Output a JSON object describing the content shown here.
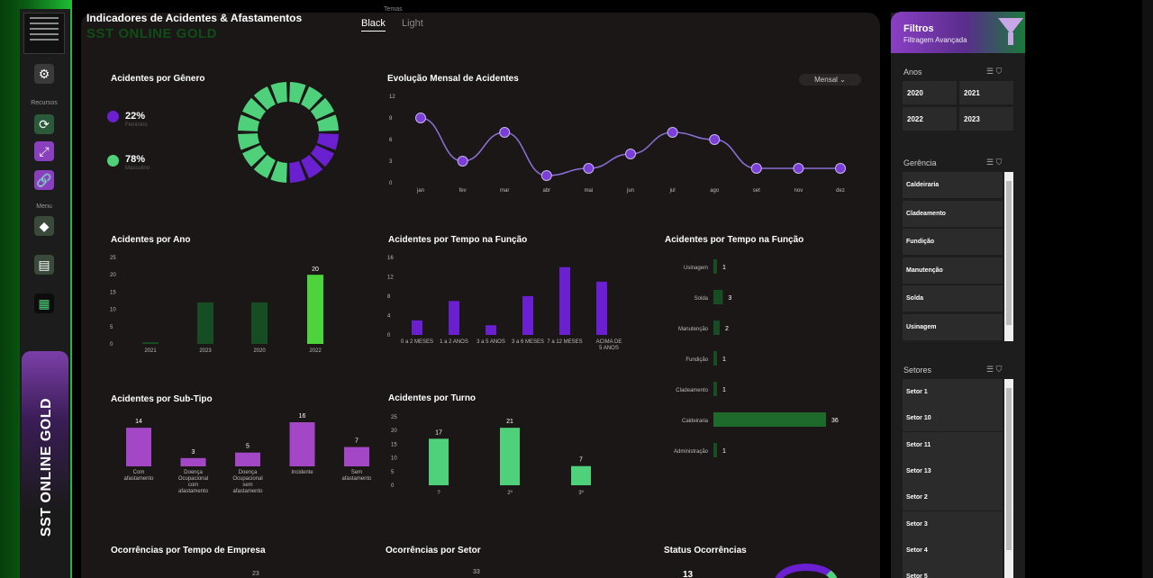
{
  "header": {
    "title": "Indicadores de Acidentes & Afastamentos",
    "subtitle": "SST ONLINE GOLD",
    "theme_label": "Temas",
    "themes": [
      "Black",
      "Light"
    ]
  },
  "rail": {
    "recurso_label": "Recursos",
    "menu_label": "Menu",
    "brand": "SST ONLINE GOLD"
  },
  "genero": {
    "title": "Acidentes por Gênero",
    "items": [
      {
        "pct": "22%",
        "label": "Feminino",
        "color": "#6a1fd1"
      },
      {
        "pct": "78%",
        "label": "Masculino",
        "color": "#4fd07a"
      }
    ]
  },
  "mensal": {
    "title": "Evolução Mensal de Acidentes",
    "dropdown": "Mensal",
    "yticks": [
      "12",
      "9",
      "6",
      "3",
      "0"
    ]
  },
  "ano": {
    "title": "Acidentes por Ano",
    "yticks": [
      "25",
      "20",
      "15",
      "10",
      "5",
      "0"
    ]
  },
  "tempo_funcao": {
    "title": "Acidentes por Tempo na Função",
    "yticks": [
      "16",
      "12",
      "8",
      "4",
      "0"
    ]
  },
  "tempo_funcao2": {
    "title": "Acidentes por Tempo na Função"
  },
  "subtipo": {
    "title": "Acidentes por Sub-Tipo"
  },
  "turno": {
    "title": "Acidentes por Turno",
    "yticks": [
      "25",
      "20",
      "15",
      "10",
      "5",
      "0"
    ]
  },
  "bottom": {
    "t1": "Ocorrências por Tempo de Empresa",
    "t2": "Ocorrências por Setor",
    "t3": "Status Ocorrências",
    "v1": "23",
    "v2": "33",
    "v3": "13"
  },
  "chart_data": [
    {
      "type": "pie",
      "title": "Acidentes por Gênero",
      "categories": [
        "Feminino",
        "Masculino"
      ],
      "values": [
        22,
        78
      ]
    },
    {
      "type": "line",
      "title": "Evolução Mensal de Acidentes",
      "categories": [
        "jan",
        "fev",
        "mar",
        "abr",
        "mai",
        "jun",
        "jul",
        "ago",
        "set",
        "nov",
        "dez"
      ],
      "values": [
        9,
        3,
        7,
        1,
        2,
        4,
        7,
        6,
        2,
        2,
        2
      ],
      "ylim": [
        0,
        12
      ]
    },
    {
      "type": "bar",
      "title": "Acidentes por Ano",
      "categories": [
        "2021",
        "2023",
        "2020",
        "2022"
      ],
      "values": [
        0.5,
        12,
        12,
        20
      ],
      "labels": [
        "",
        "",
        "",
        "20"
      ],
      "ylim": [
        0,
        25
      ]
    },
    {
      "type": "bar",
      "title": "Acidentes por Tempo na Função",
      "categories": [
        "0 a 2 MESES",
        "1 a 2 ANOS",
        "3 a 5 ANOS",
        "3 a 6 MESES",
        "7 a 12 MESES",
        "ACIMA DE 5 ANOS"
      ],
      "values": [
        3,
        7,
        2,
        8,
        14,
        11
      ],
      "ylim": [
        0,
        16
      ]
    },
    {
      "type": "bar",
      "title": "Acidentes por Tempo na Função",
      "orientation": "horizontal",
      "categories": [
        "Usinagem",
        "Solda",
        "Manutenção",
        "Fundição",
        "Cladeamento",
        "Caldeiraria",
        "Administração"
      ],
      "values": [
        1,
        3,
        2,
        1,
        1,
        36,
        1
      ]
    },
    {
      "type": "bar",
      "title": "Acidentes por Sub-Tipo",
      "categories": [
        "Com afastamento",
        "Doença Ocupacional com afastamento",
        "Doença Ocupacional sem afastamento",
        "Incidente",
        "Sem afastamento"
      ],
      "values": [
        14,
        3,
        5,
        16,
        7
      ]
    },
    {
      "type": "bar",
      "title": "Acidentes por Turno",
      "categories": [
        "?",
        "2º",
        "3º"
      ],
      "values": [
        17,
        21,
        7
      ],
      "ylim": [
        0,
        25
      ]
    }
  ],
  "filters": {
    "title": "Filtros",
    "subtitle": "Filtragem Avançada",
    "anos_label": "Anos",
    "anos": [
      "2020",
      "2021",
      "2022",
      "2023"
    ],
    "gerencia_label": "Gerência",
    "gerencia": [
      "Caldeiraria",
      "Cladeamento",
      "Fundição",
      "Manutenção",
      "Solda",
      "Usinagem"
    ],
    "setores_label": "Setores",
    "setores": [
      "Setor 1",
      "Setor 10",
      "Setor 11",
      "Setor 13",
      "Setor 2",
      "Setor 3",
      "Setor 4",
      "Setor 5"
    ]
  },
  "colors": {
    "purple": "#6a1fd1",
    "green": "#4fd07a",
    "magenta": "#a347c7",
    "darkgreen": "#174d22",
    "lime": "#4cd43a"
  }
}
